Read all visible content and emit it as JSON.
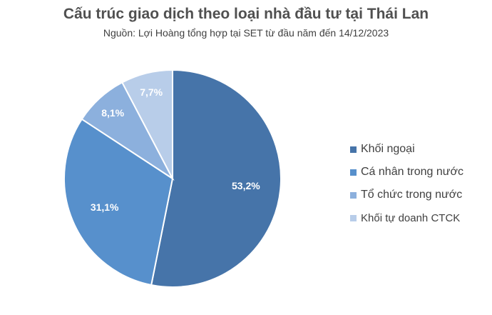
{
  "chart_data": {
    "type": "pie",
    "title": "Cấu trúc giao dịch theo loại nhà đầu tư tại Thái Lan",
    "subtitle": "Nguồn: Lợi Hoàng tổng hợp tại SET từ đầu năm đến 14/12/2023",
    "categories": [
      "Khối ngoại",
      "Cá nhân trong nước",
      "Tổ chức trong nước",
      "Khối tự doanh CTCK"
    ],
    "values": [
      53.2,
      31.1,
      8.1,
      7.7
    ],
    "data_labels": [
      "53,2%",
      "31,1%",
      "8,1%",
      "7,7%"
    ],
    "colors": [
      "#4674a9",
      "#5790cc",
      "#8cb0dd",
      "#b8cde9"
    ],
    "legend_position": "right"
  }
}
